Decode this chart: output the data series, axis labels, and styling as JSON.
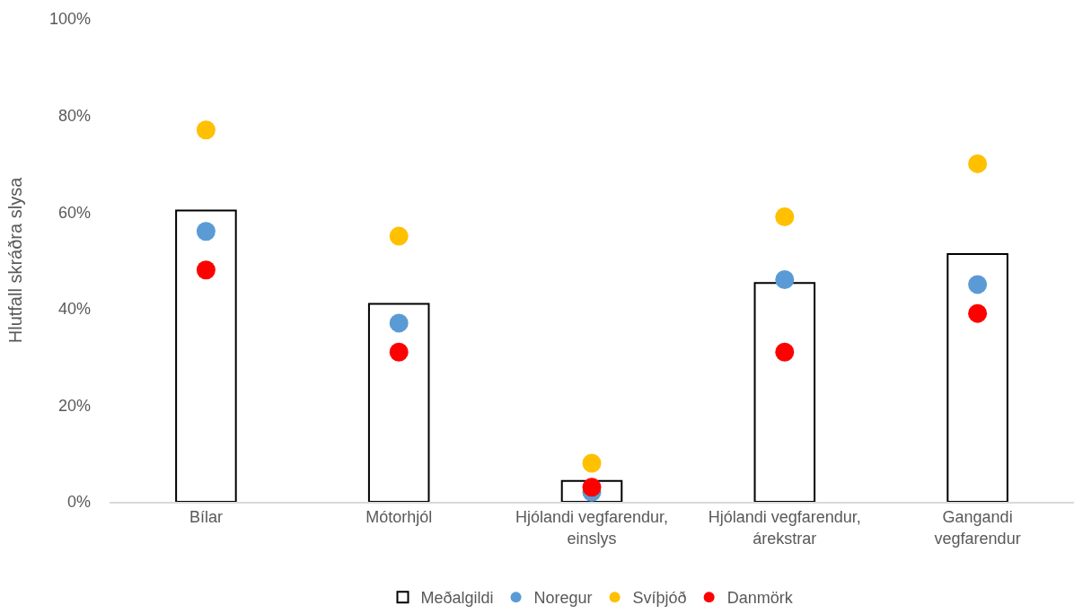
{
  "chart_data": {
    "type": "bar",
    "ylabel": "Hlutfall skráðra slysa",
    "categories": [
      "Bílar",
      "Mótorhjól",
      "Hjólandi vegfarendur, einslys",
      "Hjólandi vegfarendur, árekstrar",
      "Gangandi vegfarendur"
    ],
    "series": [
      {
        "name": "Meðalgildi",
        "color": "#000000",
        "values": [
          60.3,
          41,
          4.3,
          45.3,
          51.3
        ]
      },
      {
        "name": "Noregur",
        "type": "scatter",
        "color": "#5b9bd5",
        "x": [
          "Bílar",
          "Mótorhjól",
          "Hjólandi vegfarendur, einslys",
          "Hjólandi vegfarendur, árekstrar",
          "Gangandi vegfarendur"
        ],
        "values": [
          56,
          37,
          2,
          46,
          45
        ]
      },
      {
        "name": "Svíþjóð",
        "type": "scatter",
        "color": "#ffc000",
        "x": [
          "Bílar",
          "Mótorhjól",
          "Hjólandi vegfarendur, einslys",
          "Hjólandi vegfarendur, árekstrar",
          "Gangandi vegfarendur"
        ],
        "values": [
          77,
          55,
          8,
          59,
          70
        ]
      },
      {
        "name": "Danmörk",
        "type": "scatter",
        "color": "#ff0000",
        "x": [
          "Bílar",
          "Mótorhjól",
          "Hjólandi vegfarendur, einslys",
          "Hjólandi vegfarendur, árekstrar",
          "Gangandi vegfarendur"
        ],
        "values": [
          48,
          31,
          3,
          31,
          39
        ]
      }
    ],
    "ylim": [
      0,
      100
    ],
    "yticks": [
      {
        "value": 0,
        "label": "0%"
      },
      {
        "value": 20,
        "label": "20%"
      },
      {
        "value": 40,
        "label": "40%"
      },
      {
        "value": 60,
        "label": "60%"
      },
      {
        "value": 80,
        "label": "80%"
      },
      {
        "value": 100,
        "label": "100%"
      }
    ],
    "grid": false,
    "legend": "bottom",
    "marker": "circle"
  }
}
